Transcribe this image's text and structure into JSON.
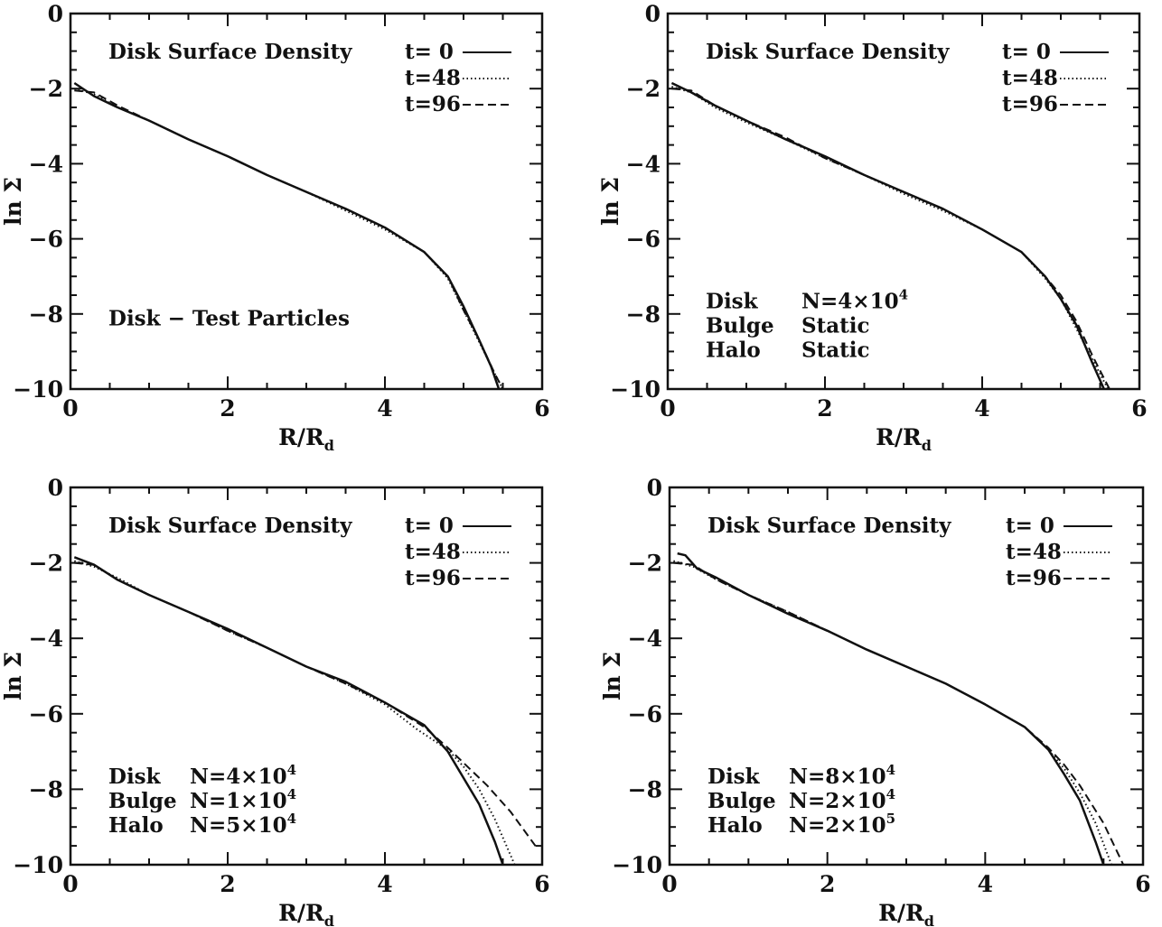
{
  "chart_data": [
    {
      "type": "line",
      "title": "Disk Surface Density",
      "xlabel": "R/R_d",
      "ylabel": "ln Σ",
      "xlim": [
        0,
        6
      ],
      "ylim": [
        -10,
        0
      ],
      "xticks": [
        "0",
        "2",
        "4",
        "6"
      ],
      "yticks": [
        "0",
        "−2",
        "−4",
        "−6",
        "−8",
        "−10"
      ],
      "annotations": [
        "Disk − Test Particles"
      ],
      "series": [
        {
          "name": "t= 0",
          "style": "solid",
          "x": [
            0.05,
            0.3,
            0.6,
            1,
            1.5,
            2,
            2.5,
            3,
            3.5,
            4,
            4.5,
            4.8,
            5.0,
            5.2,
            5.35,
            5.45
          ],
          "y": [
            -1.85,
            -2.2,
            -2.5,
            -2.85,
            -3.35,
            -3.8,
            -4.3,
            -4.75,
            -5.2,
            -5.7,
            -6.35,
            -7.0,
            -7.8,
            -8.7,
            -9.4,
            -10
          ]
        },
        {
          "name": "t=48",
          "style": "dotted",
          "x": [
            0.05,
            0.3,
            0.6,
            1,
            1.5,
            2,
            2.5,
            3,
            3.5,
            4,
            4.5,
            4.8,
            5.0,
            5.2,
            5.4,
            5.5
          ],
          "y": [
            -2.0,
            -2.15,
            -2.5,
            -2.85,
            -3.35,
            -3.8,
            -4.3,
            -4.75,
            -5.25,
            -5.75,
            -6.35,
            -7.05,
            -7.9,
            -8.75,
            -9.6,
            -10
          ]
        },
        {
          "name": "t=96",
          "style": "dashed",
          "x": [
            0.05,
            0.3,
            0.6,
            1,
            1.5,
            2,
            2.5,
            3,
            3.5,
            4,
            4.5,
            4.8,
            5.0,
            5.2,
            5.4,
            5.5
          ],
          "y": [
            -2.05,
            -2.1,
            -2.45,
            -2.85,
            -3.35,
            -3.8,
            -4.3,
            -4.75,
            -5.2,
            -5.7,
            -6.35,
            -7.0,
            -7.9,
            -8.7,
            -9.6,
            -10
          ]
        }
      ]
    },
    {
      "type": "line",
      "title": "Disk Surface Density",
      "xlabel": "R/R_d",
      "ylabel": "ln Σ",
      "xlim": [
        0,
        6
      ],
      "ylim": [
        -10,
        0
      ],
      "xticks": [
        "0",
        "2",
        "4",
        "6"
      ],
      "yticks": [
        "0",
        "−2",
        "−4",
        "−6",
        "−8",
        "−10"
      ],
      "annotations": [
        {
          "label": "Disk",
          "value": "N=4×10",
          "sup": "4"
        },
        {
          "label": "Bulge",
          "value": "Static",
          "sup": ""
        },
        {
          "label": "Halo",
          "value": "Static",
          "sup": ""
        }
      ],
      "series": [
        {
          "name": "t= 0",
          "style": "solid",
          "x": [
            0.05,
            0.3,
            0.6,
            1,
            1.5,
            2,
            2.5,
            3,
            3.5,
            4,
            4.5,
            4.8,
            5.0,
            5.2,
            5.4,
            5.55
          ],
          "y": [
            -1.85,
            -2.1,
            -2.45,
            -2.85,
            -3.35,
            -3.8,
            -4.3,
            -4.75,
            -5.2,
            -5.75,
            -6.35,
            -7.0,
            -7.6,
            -8.3,
            -9.3,
            -10
          ]
        },
        {
          "name": "t=48",
          "style": "dotted",
          "x": [
            0.05,
            0.3,
            0.6,
            1,
            1.5,
            2,
            2.5,
            3,
            3.5,
            4,
            4.5,
            4.8,
            5.0,
            5.2,
            5.4,
            5.6
          ],
          "y": [
            -1.95,
            -2.1,
            -2.5,
            -2.9,
            -3.35,
            -3.85,
            -4.3,
            -4.8,
            -5.25,
            -5.75,
            -6.35,
            -7.05,
            -7.6,
            -8.4,
            -9.2,
            -10
          ]
        },
        {
          "name": "t=96",
          "style": "dashed",
          "x": [
            0.05,
            0.3,
            0.6,
            1,
            1.5,
            2,
            2.5,
            3,
            3.5,
            4,
            4.5,
            4.8,
            5.0,
            5.2,
            5.4,
            5.62
          ],
          "y": [
            -2.0,
            -2.05,
            -2.45,
            -2.85,
            -3.3,
            -3.85,
            -4.3,
            -4.75,
            -5.2,
            -5.75,
            -6.35,
            -7.0,
            -7.5,
            -8.2,
            -9.1,
            -10
          ]
        }
      ]
    },
    {
      "type": "line",
      "title": "Disk Surface Density",
      "xlabel": "R/R_d",
      "ylabel": "ln Σ",
      "xlim": [
        0,
        6
      ],
      "ylim": [
        -10,
        0
      ],
      "xticks": [
        "0",
        "2",
        "4",
        "6"
      ],
      "yticks": [
        "0",
        "−2",
        "−4",
        "−6",
        "−8",
        "−10"
      ],
      "annotations": [
        {
          "label": "Disk",
          "value": "N=4×10",
          "sup": "4"
        },
        {
          "label": "Bulge",
          "value": "N=1×10",
          "sup": "4"
        },
        {
          "label": "Halo",
          "value": "N=5×10",
          "sup": "4"
        }
      ],
      "series": [
        {
          "name": "t= 0",
          "style": "solid",
          "x": [
            0.05,
            0.3,
            0.6,
            1,
            1.5,
            2,
            2.5,
            3,
            3.5,
            4,
            4.5,
            4.8,
            5.0,
            5.2,
            5.4,
            5.5
          ],
          "y": [
            -1.85,
            -2.05,
            -2.45,
            -2.85,
            -3.3,
            -3.75,
            -4.25,
            -4.75,
            -5.15,
            -5.7,
            -6.3,
            -7.0,
            -7.7,
            -8.4,
            -9.4,
            -10
          ]
        },
        {
          "name": "t=48",
          "style": "dotted",
          "x": [
            0.05,
            0.3,
            0.6,
            1,
            1.5,
            2,
            2.5,
            3,
            3.5,
            4,
            4.4,
            4.8,
            5.0,
            5.2,
            5.4,
            5.65
          ],
          "y": [
            -1.95,
            -2.1,
            -2.4,
            -2.85,
            -3.3,
            -3.8,
            -4.25,
            -4.75,
            -5.2,
            -5.75,
            -6.4,
            -6.95,
            -7.4,
            -8.0,
            -8.8,
            -10
          ]
        },
        {
          "name": "t=96",
          "style": "dashed",
          "x": [
            0.05,
            0.3,
            0.6,
            1,
            1.5,
            2,
            2.5,
            3,
            3.5,
            4,
            4.5,
            4.8,
            5.0,
            5.3,
            5.6,
            5.95
          ],
          "y": [
            -2.0,
            -2.05,
            -2.45,
            -2.85,
            -3.3,
            -3.8,
            -4.25,
            -4.75,
            -5.2,
            -5.7,
            -6.35,
            -6.9,
            -7.3,
            -7.9,
            -8.6,
            -9.6
          ]
        }
      ]
    },
    {
      "type": "line",
      "title": "Disk Surface Density",
      "xlabel": "R/R_d",
      "ylabel": "ln Σ",
      "xlim": [
        0,
        6
      ],
      "ylim": [
        -10,
        0
      ],
      "xticks": [
        "0",
        "2",
        "4",
        "6"
      ],
      "yticks": [
        "0",
        "−2",
        "−4",
        "−6",
        "−8",
        "−10"
      ],
      "annotations": [
        {
          "label": "Disk",
          "value": "N=8×10",
          "sup": "4"
        },
        {
          "label": "Bulge",
          "value": "N=2×10",
          "sup": "4"
        },
        {
          "label": "Halo",
          "value": "N=2×10",
          "sup": "5"
        }
      ],
      "series": [
        {
          "name": "t= 0",
          "style": "solid",
          "x": [
            0.1,
            0.2,
            0.35,
            0.6,
            1,
            1.5,
            2,
            2.5,
            3,
            3.5,
            4,
            4.5,
            4.8,
            5.0,
            5.2,
            5.4,
            5.5
          ],
          "y": [
            -1.75,
            -1.8,
            -2.15,
            -2.4,
            -2.85,
            -3.35,
            -3.8,
            -4.3,
            -4.75,
            -5.2,
            -5.75,
            -6.35,
            -6.95,
            -7.6,
            -8.3,
            -9.4,
            -10
          ]
        },
        {
          "name": "t=48",
          "style": "dotted",
          "x": [
            0.05,
            0.3,
            0.6,
            1,
            1.5,
            2,
            2.5,
            3,
            3.5,
            4,
            4.5,
            4.8,
            5.0,
            5.2,
            5.4,
            5.6
          ],
          "y": [
            -1.95,
            -2.1,
            -2.45,
            -2.85,
            -3.3,
            -3.8,
            -4.3,
            -4.75,
            -5.2,
            -5.75,
            -6.35,
            -6.95,
            -7.45,
            -8.1,
            -8.9,
            -10
          ]
        },
        {
          "name": "t=96",
          "style": "dashed",
          "x": [
            0.05,
            0.3,
            0.6,
            1,
            1.5,
            2,
            2.5,
            3,
            3.5,
            4,
            4.5,
            4.8,
            5.0,
            5.2,
            5.5,
            5.75
          ],
          "y": [
            -2.0,
            -2.05,
            -2.45,
            -2.85,
            -3.3,
            -3.8,
            -4.3,
            -4.75,
            -5.2,
            -5.75,
            -6.35,
            -6.9,
            -7.35,
            -7.9,
            -8.9,
            -10
          ]
        }
      ]
    }
  ]
}
